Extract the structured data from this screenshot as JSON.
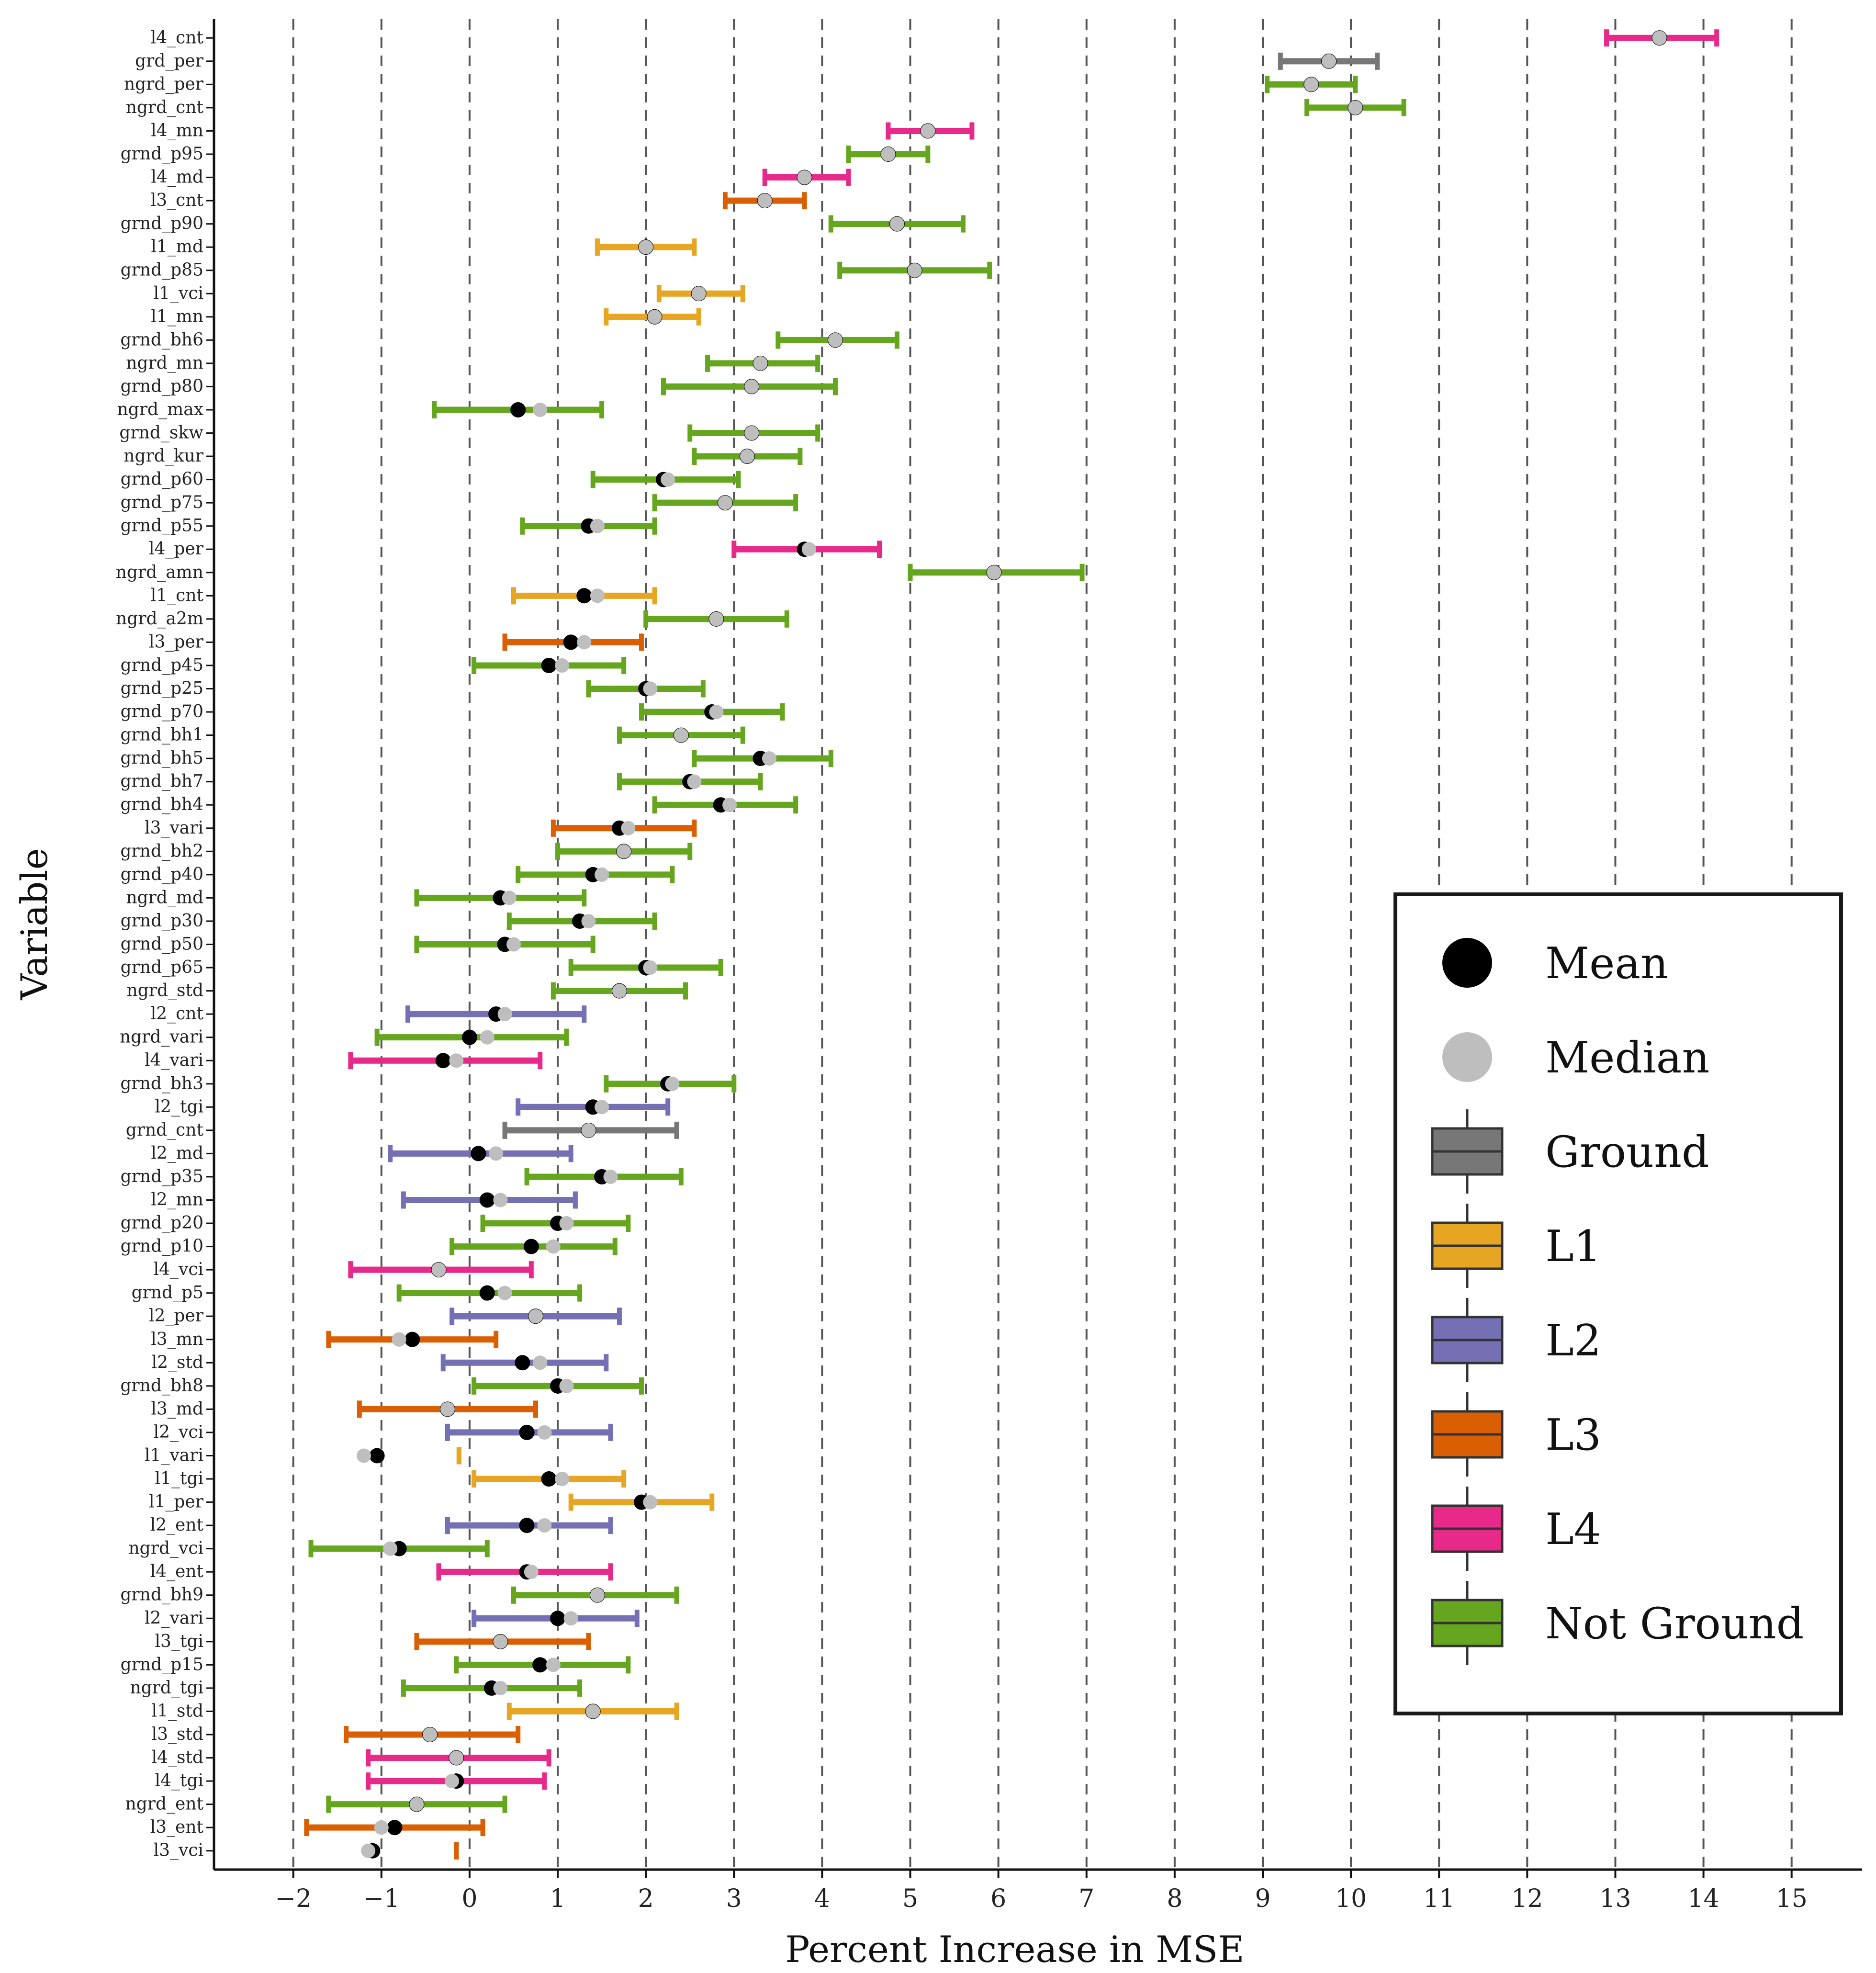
{
  "chart_data": {
    "type": "errorbar",
    "title": "",
    "xlabel": "Percent Increase in MSE",
    "ylabel": "Variable",
    "xlim": [
      -2.9,
      15.8
    ],
    "xticks": [
      -2,
      -1,
      0,
      1,
      2,
      3,
      4,
      5,
      6,
      7,
      8,
      9,
      10,
      11,
      12,
      13,
      14,
      15
    ],
    "xtick_labels": [
      "−2",
      "−1",
      "0",
      "1",
      "2",
      "3",
      "4",
      "5",
      "6",
      "7",
      "8",
      "9",
      "10",
      "11",
      "12",
      "13",
      "14",
      "15"
    ],
    "grid": "dashed vertical lines at major x ticks",
    "legend_position": "bottom-right",
    "colors": {
      "Ground": "#777777",
      "L1": "#E6A623",
      "L2": "#7570B3",
      "L3": "#D95F02",
      "L4": "#E7298A",
      "Not Ground": "#66A61E",
      "mean": "#000000",
      "median": "#BEBEBE"
    },
    "legend": [
      {
        "label": "Mean",
        "kind": "point",
        "color": "#000000"
      },
      {
        "label": "Median",
        "kind": "point",
        "color": "#BEBEBE"
      },
      {
        "label": "Ground",
        "kind": "box",
        "color": "#777777"
      },
      {
        "label": "L1",
        "kind": "box",
        "color": "#E6A623"
      },
      {
        "label": "L2",
        "kind": "box",
        "color": "#7570B3"
      },
      {
        "label": "L3",
        "kind": "box",
        "color": "#D95F02"
      },
      {
        "label": "L4",
        "kind": "box",
        "color": "#E7298A"
      },
      {
        "label": "Not Ground",
        "kind": "box",
        "color": "#66A61E"
      }
    ],
    "rows": [
      {
        "variable": "l4_cnt",
        "group": "L4",
        "low": 12.9,
        "high": 14.15,
        "mean": 13.5,
        "median": 13.5
      },
      {
        "variable": "grd_per",
        "group": "Ground",
        "low": 9.2,
        "high": 10.3,
        "mean": 9.75,
        "median": 9.75
      },
      {
        "variable": "ngrd_per",
        "group": "Not Ground",
        "low": 9.05,
        "high": 10.05,
        "mean": 9.55,
        "median": 9.55
      },
      {
        "variable": "ngrd_cnt",
        "group": "Not Ground",
        "low": 9.5,
        "high": 10.6,
        "mean": 10.05,
        "median": 10.05
      },
      {
        "variable": "l4_mn",
        "group": "L4",
        "low": 4.75,
        "high": 5.7,
        "mean": 5.2,
        "median": 5.2
      },
      {
        "variable": "grnd_p95",
        "group": "Not Ground",
        "low": 4.3,
        "high": 5.2,
        "mean": 4.75,
        "median": 4.75
      },
      {
        "variable": "l4_md",
        "group": "L4",
        "low": 3.35,
        "high": 4.3,
        "mean": 3.8,
        "median": 3.8
      },
      {
        "variable": "l3_cnt",
        "group": "L3",
        "low": 2.9,
        "high": 3.8,
        "mean": 3.35,
        "median": 3.35
      },
      {
        "variable": "grnd_p90",
        "group": "Not Ground",
        "low": 4.1,
        "high": 5.6,
        "mean": 4.85,
        "median": 4.85
      },
      {
        "variable": "l1_md",
        "group": "L1",
        "low": 1.45,
        "high": 2.55,
        "mean": 2.0,
        "median": 2.0
      },
      {
        "variable": "grnd_p85",
        "group": "Not Ground",
        "low": 4.2,
        "high": 5.9,
        "mean": 5.05,
        "median": 5.05
      },
      {
        "variable": "l1_vci",
        "group": "L1",
        "low": 2.15,
        "high": 3.1,
        "mean": 2.6,
        "median": 2.6
      },
      {
        "variable": "l1_mn",
        "group": "L1",
        "low": 1.55,
        "high": 2.6,
        "mean": 2.1,
        "median": 2.1
      },
      {
        "variable": "grnd_bh6",
        "group": "Not Ground",
        "low": 3.5,
        "high": 4.85,
        "mean": 4.15,
        "median": 4.15
      },
      {
        "variable": "ngrd_mn",
        "group": "Not Ground",
        "low": 2.7,
        "high": 3.95,
        "mean": 3.3,
        "median": 3.3
      },
      {
        "variable": "grnd_p80",
        "group": "Not Ground",
        "low": 2.2,
        "high": 4.15,
        "mean": 3.2,
        "median": 3.2
      },
      {
        "variable": "ngrd_max",
        "group": "Not Ground",
        "low": -0.4,
        "high": 1.5,
        "mean": 0.55,
        "median": 0.8
      },
      {
        "variable": "grnd_skw",
        "group": "Not Ground",
        "low": 2.5,
        "high": 3.95,
        "mean": 3.2,
        "median": 3.2
      },
      {
        "variable": "ngrd_kur",
        "group": "Not Ground",
        "low": 2.55,
        "high": 3.75,
        "mean": 3.15,
        "median": 3.15
      },
      {
        "variable": "grnd_p60",
        "group": "Not Ground",
        "low": 1.4,
        "high": 3.05,
        "mean": 2.2,
        "median": 2.25
      },
      {
        "variable": "grnd_p75",
        "group": "Not Ground",
        "low": 2.1,
        "high": 3.7,
        "mean": 2.9,
        "median": 2.9
      },
      {
        "variable": "grnd_p55",
        "group": "Not Ground",
        "low": 0.6,
        "high": 2.1,
        "mean": 1.35,
        "median": 1.45
      },
      {
        "variable": "l4_per",
        "group": "L4",
        "low": 3.0,
        "high": 4.65,
        "mean": 3.8,
        "median": 3.85
      },
      {
        "variable": "ngrd_amn",
        "group": "Not Ground",
        "low": 5.0,
        "high": 6.95,
        "mean": 5.95,
        "median": 5.95
      },
      {
        "variable": "l1_cnt",
        "group": "L1",
        "low": 0.5,
        "high": 2.1,
        "mean": 1.3,
        "median": 1.45
      },
      {
        "variable": "ngrd_a2m",
        "group": "Not Ground",
        "low": 2.0,
        "high": 3.6,
        "mean": 2.8,
        "median": 2.8
      },
      {
        "variable": "l3_per",
        "group": "L3",
        "low": 0.4,
        "high": 1.95,
        "mean": 1.15,
        "median": 1.3
      },
      {
        "variable": "grnd_p45",
        "group": "Not Ground",
        "low": 0.05,
        "high": 1.75,
        "mean": 0.9,
        "median": 1.05
      },
      {
        "variable": "grnd_p25",
        "group": "Not Ground",
        "low": 1.35,
        "high": 2.65,
        "mean": 2.0,
        "median": 2.05
      },
      {
        "variable": "grnd_p70",
        "group": "Not Ground",
        "low": 1.95,
        "high": 3.55,
        "mean": 2.75,
        "median": 2.8
      },
      {
        "variable": "grnd_bh1",
        "group": "Not Ground",
        "low": 1.7,
        "high": 3.1,
        "mean": 2.4,
        "median": 2.4
      },
      {
        "variable": "grnd_bh5",
        "group": "Not Ground",
        "low": 2.55,
        "high": 4.1,
        "mean": 3.3,
        "median": 3.4
      },
      {
        "variable": "grnd_bh7",
        "group": "Not Ground",
        "low": 1.7,
        "high": 3.3,
        "mean": 2.5,
        "median": 2.55
      },
      {
        "variable": "grnd_bh4",
        "group": "Not Ground",
        "low": 2.1,
        "high": 3.7,
        "mean": 2.85,
        "median": 2.95
      },
      {
        "variable": "l3_vari",
        "group": "L3",
        "low": 0.95,
        "high": 2.55,
        "mean": 1.7,
        "median": 1.8
      },
      {
        "variable": "grnd_bh2",
        "group": "Not Ground",
        "low": 1.0,
        "high": 2.5,
        "mean": 1.75,
        "median": 1.75
      },
      {
        "variable": "grnd_p40",
        "group": "Not Ground",
        "low": 0.55,
        "high": 2.3,
        "mean": 1.4,
        "median": 1.5
      },
      {
        "variable": "ngrd_md",
        "group": "Not Ground",
        "low": -0.6,
        "high": 1.3,
        "mean": 0.35,
        "median": 0.45
      },
      {
        "variable": "grnd_p30",
        "group": "Not Ground",
        "low": 0.45,
        "high": 2.1,
        "mean": 1.25,
        "median": 1.35
      },
      {
        "variable": "grnd_p50",
        "group": "Not Ground",
        "low": -0.6,
        "high": 1.4,
        "mean": 0.4,
        "median": 0.5
      },
      {
        "variable": "grnd_p65",
        "group": "Not Ground",
        "low": 1.15,
        "high": 2.85,
        "mean": 2.0,
        "median": 2.05
      },
      {
        "variable": "ngrd_std",
        "group": "Not Ground",
        "low": 0.95,
        "high": 2.45,
        "mean": 1.7,
        "median": 1.7
      },
      {
        "variable": "l2_cnt",
        "group": "L2",
        "low": -0.7,
        "high": 1.3,
        "mean": 0.3,
        "median": 0.4
      },
      {
        "variable": "ngrd_vari",
        "group": "Not Ground",
        "low": -1.05,
        "high": 1.1,
        "mean": 0.0,
        "median": 0.2
      },
      {
        "variable": "l4_vari",
        "group": "L4",
        "low": -1.35,
        "high": 0.8,
        "mean": -0.3,
        "median": -0.15
      },
      {
        "variable": "grnd_bh3",
        "group": "Not Ground",
        "low": 1.55,
        "high": 3.0,
        "mean": 2.25,
        "median": 2.3
      },
      {
        "variable": "l2_tgi",
        "group": "L2",
        "low": 0.55,
        "high": 2.25,
        "mean": 1.4,
        "median": 1.5
      },
      {
        "variable": "grnd_cnt",
        "group": "Ground",
        "low": 0.4,
        "high": 2.35,
        "mean": 1.35,
        "median": 1.35
      },
      {
        "variable": "l2_md",
        "group": "L2",
        "low": -0.9,
        "high": 1.15,
        "mean": 0.1,
        "median": 0.3
      },
      {
        "variable": "grnd_p35",
        "group": "Not Ground",
        "low": 0.65,
        "high": 2.4,
        "mean": 1.5,
        "median": 1.6
      },
      {
        "variable": "l2_mn",
        "group": "L2",
        "low": -0.75,
        "high": 1.2,
        "mean": 0.2,
        "median": 0.35
      },
      {
        "variable": "grnd_p20",
        "group": "Not Ground",
        "low": 0.15,
        "high": 1.8,
        "mean": 1.0,
        "median": 1.1
      },
      {
        "variable": "grnd_p10",
        "group": "Not Ground",
        "low": -0.2,
        "high": 1.65,
        "mean": 0.7,
        "median": 0.95
      },
      {
        "variable": "l4_vci",
        "group": "L4",
        "low": -1.35,
        "high": 0.7,
        "mean": -0.35,
        "median": -0.35
      },
      {
        "variable": "grnd_p5",
        "group": "Not Ground",
        "low": -0.8,
        "high": 1.25,
        "mean": 0.2,
        "median": 0.4
      },
      {
        "variable": "l2_per",
        "group": "L2",
        "low": -0.2,
        "high": 1.7,
        "mean": 0.75,
        "median": 0.75
      },
      {
        "variable": "l3_mn",
        "group": "L3",
        "low": -1.6,
        "high": 0.3,
        "mean": -0.65,
        "median": -0.8
      },
      {
        "variable": "l2_std",
        "group": "L2",
        "low": -0.3,
        "high": 1.55,
        "mean": 0.6,
        "median": 0.8
      },
      {
        "variable": "grnd_bh8",
        "group": "Not Ground",
        "low": 0.05,
        "high": 1.95,
        "mean": 1.0,
        "median": 1.1
      },
      {
        "variable": "l3_md",
        "group": "L3",
        "low": -1.25,
        "high": 0.75,
        "mean": -0.25,
        "median": -0.25
      },
      {
        "variable": "l2_vci",
        "group": "L2",
        "low": -0.25,
        "high": 1.6,
        "mean": 0.65,
        "median": 0.85
      },
      {
        "variable": "l1_vari",
        "group": "L1",
        "low": -0.12,
        "high": -0.12,
        "mean": -1.05,
        "median": -1.2
      },
      {
        "variable": "l1_tgi",
        "group": "L1",
        "low": 0.05,
        "high": 1.75,
        "mean": 0.9,
        "median": 1.05
      },
      {
        "variable": "l1_per",
        "group": "L1",
        "low": 1.15,
        "high": 2.75,
        "mean": 1.95,
        "median": 2.05
      },
      {
        "variable": "l2_ent",
        "group": "L2",
        "low": -0.25,
        "high": 1.6,
        "mean": 0.65,
        "median": 0.85
      },
      {
        "variable": "ngrd_vci",
        "group": "Not Ground",
        "low": -1.8,
        "high": 0.2,
        "mean": -0.8,
        "median": -0.9
      },
      {
        "variable": "l4_ent",
        "group": "L4",
        "low": -0.35,
        "high": 1.6,
        "mean": 0.65,
        "median": 0.7
      },
      {
        "variable": "grnd_bh9",
        "group": "Not Ground",
        "low": 0.5,
        "high": 2.35,
        "mean": 1.45,
        "median": 1.45
      },
      {
        "variable": "l2_vari",
        "group": "L2",
        "low": 0.05,
        "high": 1.9,
        "mean": 1.0,
        "median": 1.15
      },
      {
        "variable": "l3_tgi",
        "group": "L3",
        "low": -0.6,
        "high": 1.35,
        "mean": 0.35,
        "median": 0.35
      },
      {
        "variable": "grnd_p15",
        "group": "Not Ground",
        "low": -0.15,
        "high": 1.8,
        "mean": 0.8,
        "median": 0.95
      },
      {
        "variable": "ngrd_tgi",
        "group": "Not Ground",
        "low": -0.75,
        "high": 1.25,
        "mean": 0.25,
        "median": 0.35
      },
      {
        "variable": "l1_std",
        "group": "L1",
        "low": 0.45,
        "high": 2.35,
        "mean": 1.4,
        "median": 1.4
      },
      {
        "variable": "l3_std",
        "group": "L3",
        "low": -1.4,
        "high": 0.55,
        "mean": -0.45,
        "median": -0.45
      },
      {
        "variable": "l4_std",
        "group": "L4",
        "low": -1.15,
        "high": 0.9,
        "mean": -0.15,
        "median": -0.15
      },
      {
        "variable": "l4_tgi",
        "group": "L4",
        "low": -1.15,
        "high": 0.85,
        "mean": -0.15,
        "median": -0.2
      },
      {
        "variable": "ngrd_ent",
        "group": "Not Ground",
        "low": -1.6,
        "high": 0.4,
        "mean": -0.6,
        "median": -0.6
      },
      {
        "variable": "l3_ent",
        "group": "L3",
        "low": -1.85,
        "high": 0.15,
        "mean": -0.85,
        "median": -1.0
      },
      {
        "variable": "l3_vci",
        "group": "L3",
        "low": -0.15,
        "high": -0.15,
        "mean": -1.1,
        "median": -1.15
      }
    ]
  }
}
